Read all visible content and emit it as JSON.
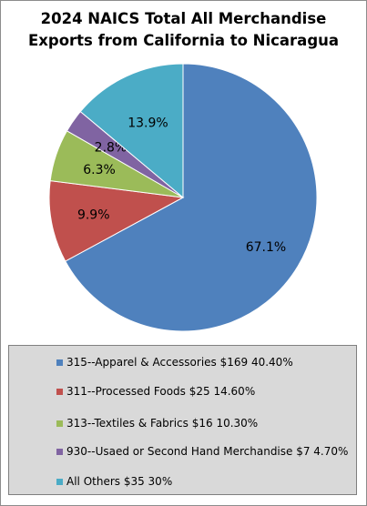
{
  "chart_data": {
    "type": "pie",
    "title": [
      "2024 NAICS Total All Merchandise",
      "Exports from California to Nicaragua"
    ],
    "slices": [
      {
        "label": "315--Apparel & Accessories $169 40.40%",
        "value": 67.1,
        "pct_label": "67.1%",
        "color": "#4f81bd"
      },
      {
        "label": "311--Processed Foods $25 14.60%",
        "value": 9.9,
        "pct_label": "9.9%",
        "color": "#c0504d"
      },
      {
        "label": "313--Textiles & Fabrics $16 10.30%",
        "value": 6.3,
        "pct_label": "6.3%",
        "color": "#9bbb59"
      },
      {
        "label": "930--Usaed or Second Hand Merchandise $7 4.70%",
        "value": 2.8,
        "pct_label": "2.8%",
        "color": "#8064a2"
      },
      {
        "label": "All Others $35 30%",
        "value": 13.9,
        "pct_label": "13.9%",
        "color": "#4bacc6"
      }
    ],
    "legend_position": "bottom"
  }
}
